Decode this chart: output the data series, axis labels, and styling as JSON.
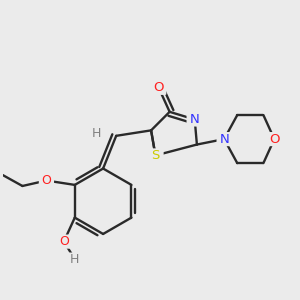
{
  "bg_color": "#ebebeb",
  "atom_colors": {
    "C": "#000000",
    "N": "#3333ff",
    "O": "#ff2020",
    "S": "#cccc00",
    "H": "#808080"
  },
  "bond_color": "#2a2a2a",
  "bond_lw": 1.7,
  "figsize": [
    3.0,
    3.0
  ],
  "dpi": 100,
  "xlim": [
    -1.2,
    1.5
  ],
  "ylim": [
    -1.4,
    0.9
  ]
}
